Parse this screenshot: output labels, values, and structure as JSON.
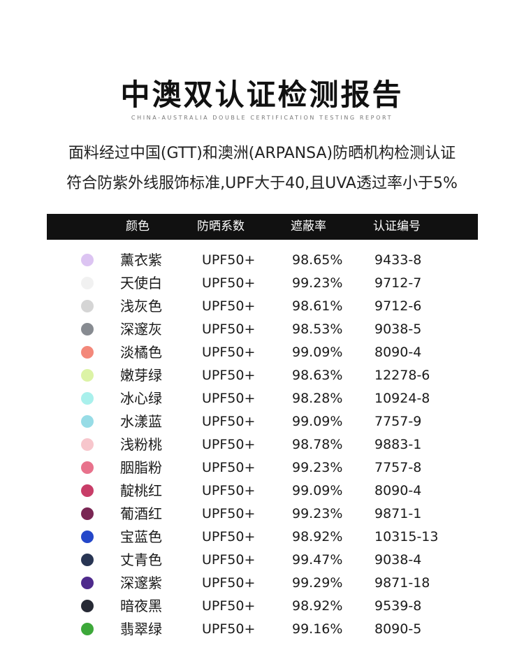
{
  "title": "中澳双认证检测报告",
  "subtitle_en": "CHINA-AUSTRALIA DOUBLE CERTIFICATION TESTING REPORT",
  "description": {
    "line1": "面料经过中国(GTT)和澳洲(ARPANSA)防晒机构检测认证",
    "line2": "符合防紫外线服饰标准,UPF大于40,且UVA透过率小于5%"
  },
  "table": {
    "headers": {
      "color": "颜色",
      "upf": "防晒系数",
      "rate": "遮蔽率",
      "cert": "认证编号"
    },
    "rows": [
      {
        "swatch": "#dcc4f2",
        "name": "薰衣紫",
        "upf": "UPF50+",
        "rate": "98.65%",
        "cert": "9433-8"
      },
      {
        "swatch": "#f1f1f1",
        "name": "天使白",
        "upf": "UPF50+",
        "rate": "99.23%",
        "cert": "9712-7"
      },
      {
        "swatch": "#d5d5d5",
        "name": "浅灰色",
        "upf": "UPF50+",
        "rate": "98.61%",
        "cert": "9712-6"
      },
      {
        "swatch": "#878b91",
        "name": "深邃灰",
        "upf": "UPF50+",
        "rate": "98.53%",
        "cert": "9038-5"
      },
      {
        "swatch": "#f3887a",
        "name": "淡橘色",
        "upf": "UPF50+",
        "rate": "99.09%",
        "cert": "8090-4"
      },
      {
        "swatch": "#dcf3a6",
        "name": "嫩芽绿",
        "upf": "UPF50+",
        "rate": "98.63%",
        "cert": "12278-6"
      },
      {
        "swatch": "#a9f0ec",
        "name": "冰心绿",
        "upf": "UPF50+",
        "rate": "98.28%",
        "cert": "10924-8"
      },
      {
        "swatch": "#97dce6",
        "name": "水漾蓝",
        "upf": "UPF50+",
        "rate": "99.09%",
        "cert": "7757-9"
      },
      {
        "swatch": "#f7c6cc",
        "name": "浅粉桃",
        "upf": "UPF50+",
        "rate": "98.78%",
        "cert": "9883-1"
      },
      {
        "swatch": "#e8728c",
        "name": "胭脂粉",
        "upf": "UPF50+",
        "rate": "99.23%",
        "cert": "7757-8"
      },
      {
        "swatch": "#c83d68",
        "name": "靛桃红",
        "upf": "UPF50+",
        "rate": "99.09%",
        "cert": "8090-4"
      },
      {
        "swatch": "#7a2654",
        "name": "葡酒红",
        "upf": "UPF50+",
        "rate": "99.23%",
        "cert": "9871-1"
      },
      {
        "swatch": "#2447c9",
        "name": "宝蓝色",
        "upf": "UPF50+",
        "rate": "98.92%",
        "cert": "10315-13"
      },
      {
        "swatch": "#283553",
        "name": "丈青色",
        "upf": "UPF50+",
        "rate": "99.47%",
        "cert": "9038-4"
      },
      {
        "swatch": "#4e2a8c",
        "name": "深邃紫",
        "upf": "UPF50+",
        "rate": "99.29%",
        "cert": "9871-18"
      },
      {
        "swatch": "#272a35",
        "name": "暗夜黑",
        "upf": "UPF50+",
        "rate": "98.92%",
        "cert": "9539-8"
      },
      {
        "swatch": "#3da83a",
        "name": "翡翠绿",
        "upf": "UPF50+",
        "rate": "99.16%",
        "cert": "8090-5"
      }
    ]
  }
}
